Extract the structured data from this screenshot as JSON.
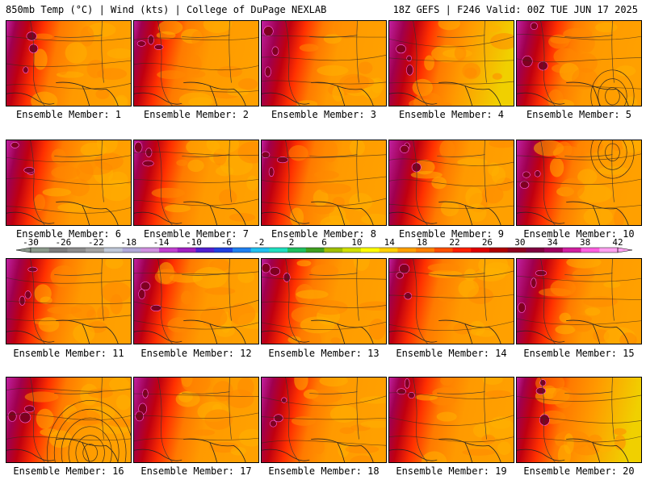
{
  "header": {
    "left": "850mb Temp (°C) | Wind (kts) | College of DuPage NEXLAB",
    "right": "18Z GEFS | F246 Valid: 00Z TUE JUN 17 2025"
  },
  "panels": [
    {
      "label": "Ensemble Member: 1"
    },
    {
      "label": "Ensemble Member: 2"
    },
    {
      "label": "Ensemble Member: 3"
    },
    {
      "label": "Ensemble Member: 4"
    },
    {
      "label": "Ensemble Member: 5"
    },
    {
      "label": "Ensemble Member: 6"
    },
    {
      "label": "Ensemble Member: 7"
    },
    {
      "label": "Ensemble Member: 8"
    },
    {
      "label": "Ensemble Member: 9"
    },
    {
      "label": "Ensemble Member: 10"
    },
    {
      "label": "Ensemble Member: 11"
    },
    {
      "label": "Ensemble Member: 12"
    },
    {
      "label": "Ensemble Member: 13"
    },
    {
      "label": "Ensemble Member: 14"
    },
    {
      "label": "Ensemble Member: 15"
    },
    {
      "label": "Ensemble Member: 16"
    },
    {
      "label": "Ensemble Member: 17"
    },
    {
      "label": "Ensemble Member: 18"
    },
    {
      "label": "Ensemble Member: 19"
    },
    {
      "label": "Ensemble Member: 20"
    }
  ],
  "colorbar": {
    "ticks": [
      "-30",
      "-26",
      "-22",
      "-18",
      "-14",
      "-10",
      "-6",
      "-2",
      "2",
      "6",
      "10",
      "14",
      "18",
      "22",
      "26",
      "30",
      "34",
      "38",
      "42"
    ],
    "colors": [
      "#8c9a8c",
      "#7d7d7d",
      "#8d8d8d",
      "#a3a3a3",
      "#bfc8d8",
      "#b0a8d8",
      "#d090e0",
      "#c040d0",
      "#a020c0",
      "#5020d0",
      "#2040e0",
      "#2080f0",
      "#20c0f0",
      "#20e0c0",
      "#20c060",
      "#40a020",
      "#a0c000",
      "#d0e000",
      "#ffff00",
      "#ffd000",
      "#ffa000",
      "#ff8000",
      "#ff5000",
      "#ff2000",
      "#e00000",
      "#b00000",
      "#900020",
      "#800040",
      "#a00060",
      "#d020a0",
      "#ff60e0",
      "#ffa0f0"
    ],
    "unit_range": [
      -30,
      42
    ]
  }
}
